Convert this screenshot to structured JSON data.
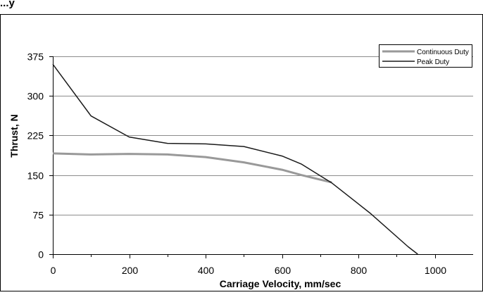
{
  "chart_data": {
    "type": "line",
    "title": "...y",
    "xlabel": "Carriage Velocity, mm/sec",
    "ylabel": "Thrust, N",
    "xlim": [
      0,
      1100
    ],
    "ylim": [
      0,
      375
    ],
    "x_ticks": [
      "0",
      "200",
      "400",
      "600",
      "800",
      "1000"
    ],
    "y_ticks": [
      "0",
      "75",
      "150",
      "225",
      "300",
      "375"
    ],
    "grid": "horizontal",
    "legend_position": "top-right",
    "series": [
      {
        "name": "Continuous Duty",
        "color": "#999999",
        "points": [
          [
            0,
            191
          ],
          [
            100,
            189
          ],
          [
            200,
            190
          ],
          [
            300,
            189
          ],
          [
            400,
            184
          ],
          [
            500,
            174
          ],
          [
            600,
            160
          ],
          [
            650,
            150
          ],
          [
            730,
            136
          ]
        ]
      },
      {
        "name": "Peak Duty",
        "color": "#1a1a1a",
        "points": [
          [
            0,
            360
          ],
          [
            100,
            262
          ],
          [
            200,
            222
          ],
          [
            300,
            210
          ],
          [
            400,
            209
          ],
          [
            500,
            204
          ],
          [
            600,
            186
          ],
          [
            650,
            171
          ],
          [
            730,
            135
          ],
          [
            830,
            78
          ],
          [
            930,
            14
          ],
          [
            955,
            0
          ]
        ]
      }
    ]
  }
}
